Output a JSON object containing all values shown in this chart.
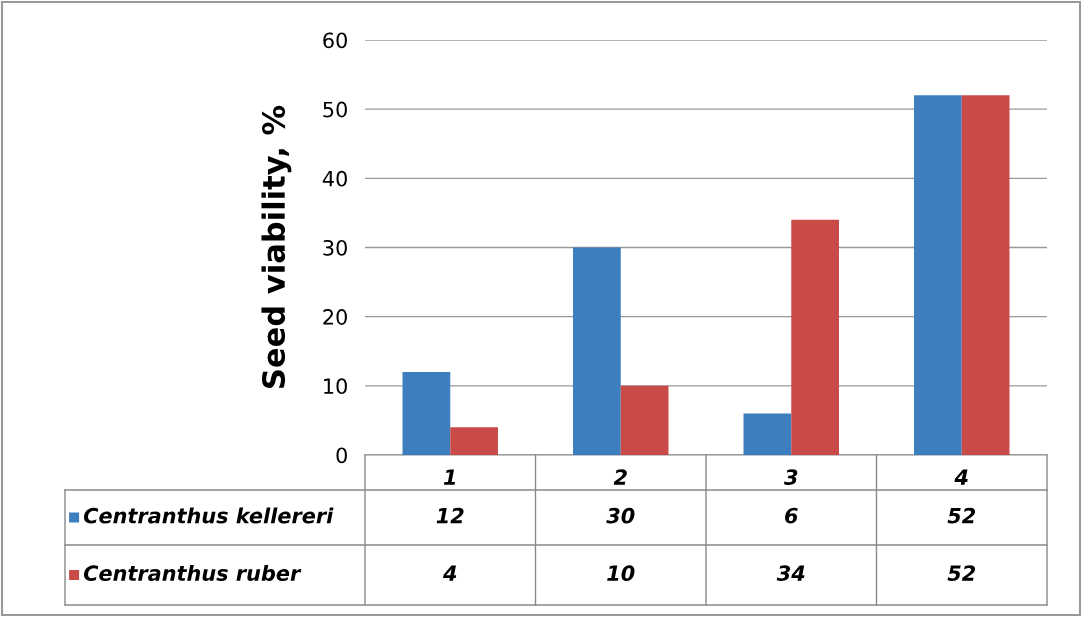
{
  "chart_data": {
    "type": "bar",
    "ylabel": "Seed viability, %",
    "categories": [
      "1",
      "2",
      "3",
      "4"
    ],
    "series": [
      {
        "name": "Centranthus kellereri",
        "color": "#3d7ebf",
        "values": [
          12,
          30,
          6,
          52
        ]
      },
      {
        "name": "Centranthus ruber",
        "color": "#c84b47",
        "values": [
          4,
          10,
          34,
          52
        ]
      }
    ],
    "ylim": [
      0,
      60
    ],
    "yticks": [
      0,
      10,
      20,
      30,
      40,
      50,
      60
    ],
    "grid": "y",
    "legend": "bottom left",
    "data_labels": true
  }
}
